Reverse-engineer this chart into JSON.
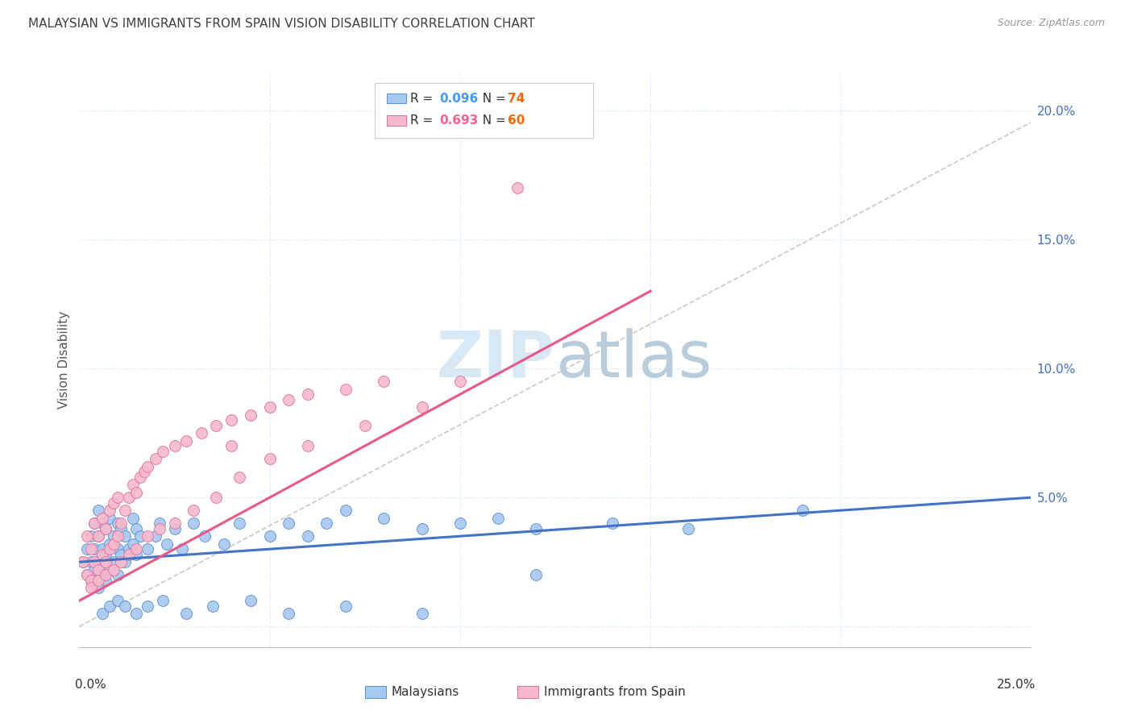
{
  "title": "MALAYSIAN VS IMMIGRANTS FROM SPAIN VISION DISABILITY CORRELATION CHART",
  "source": "Source: ZipAtlas.com",
  "ylabel": "Vision Disability",
  "xmin": 0.0,
  "xmax": 0.25,
  "ymin": -0.008,
  "ymax": 0.215,
  "blue_R": 0.096,
  "blue_N": 74,
  "pink_R": 0.693,
  "pink_N": 60,
  "blue_color": "#A8C8F0",
  "pink_color": "#F8B8CC",
  "blue_edge_color": "#5590D8",
  "pink_edge_color": "#E87098",
  "blue_line_color": "#4472C4",
  "pink_line_color": "#E85888",
  "ref_line_color": "#C8C8C8",
  "grid_color": "#DDEEFF",
  "title_color": "#404040",
  "source_color": "#999999",
  "legend_R_color_blue": "#4499FF",
  "legend_R_color_pink": "#FF6090",
  "legend_N_color": "#FF6600",
  "watermark_color": "#D0E8F8",
  "blue_scatter_x": [
    0.001,
    0.002,
    0.002,
    0.003,
    0.003,
    0.003,
    0.004,
    0.004,
    0.004,
    0.005,
    0.005,
    0.005,
    0.005,
    0.006,
    0.006,
    0.006,
    0.007,
    0.007,
    0.007,
    0.008,
    0.008,
    0.008,
    0.009,
    0.009,
    0.01,
    0.01,
    0.01,
    0.011,
    0.011,
    0.012,
    0.012,
    0.013,
    0.014,
    0.014,
    0.015,
    0.015,
    0.016,
    0.018,
    0.02,
    0.021,
    0.023,
    0.025,
    0.027,
    0.03,
    0.033,
    0.038,
    0.042,
    0.05,
    0.055,
    0.06,
    0.065,
    0.07,
    0.08,
    0.09,
    0.1,
    0.11,
    0.12,
    0.14,
    0.16,
    0.19,
    0.006,
    0.008,
    0.01,
    0.012,
    0.015,
    0.018,
    0.022,
    0.028,
    0.035,
    0.045,
    0.055,
    0.07,
    0.09,
    0.12
  ],
  "blue_scatter_y": [
    0.025,
    0.02,
    0.03,
    0.018,
    0.025,
    0.035,
    0.022,
    0.03,
    0.04,
    0.015,
    0.025,
    0.035,
    0.045,
    0.02,
    0.03,
    0.04,
    0.018,
    0.028,
    0.038,
    0.022,
    0.032,
    0.042,
    0.025,
    0.035,
    0.02,
    0.03,
    0.04,
    0.028,
    0.038,
    0.025,
    0.035,
    0.03,
    0.032,
    0.042,
    0.028,
    0.038,
    0.035,
    0.03,
    0.035,
    0.04,
    0.032,
    0.038,
    0.03,
    0.04,
    0.035,
    0.032,
    0.04,
    0.035,
    0.04,
    0.035,
    0.04,
    0.045,
    0.042,
    0.038,
    0.04,
    0.042,
    0.038,
    0.04,
    0.038,
    0.045,
    0.005,
    0.008,
    0.01,
    0.008,
    0.005,
    0.008,
    0.01,
    0.005,
    0.008,
    0.01,
    0.005,
    0.008,
    0.005,
    0.02
  ],
  "pink_scatter_x": [
    0.001,
    0.002,
    0.002,
    0.003,
    0.003,
    0.004,
    0.004,
    0.005,
    0.005,
    0.006,
    0.006,
    0.007,
    0.007,
    0.008,
    0.008,
    0.009,
    0.009,
    0.01,
    0.01,
    0.011,
    0.012,
    0.013,
    0.014,
    0.015,
    0.016,
    0.017,
    0.018,
    0.02,
    0.022,
    0.025,
    0.028,
    0.032,
    0.036,
    0.04,
    0.045,
    0.05,
    0.055,
    0.06,
    0.07,
    0.08,
    0.003,
    0.005,
    0.007,
    0.009,
    0.011,
    0.013,
    0.015,
    0.018,
    0.021,
    0.025,
    0.03,
    0.036,
    0.042,
    0.05,
    0.06,
    0.075,
    0.09,
    0.04,
    0.1,
    0.115
  ],
  "pink_scatter_y": [
    0.025,
    0.02,
    0.035,
    0.018,
    0.03,
    0.025,
    0.04,
    0.022,
    0.035,
    0.028,
    0.042,
    0.025,
    0.038,
    0.03,
    0.045,
    0.032,
    0.048,
    0.035,
    0.05,
    0.04,
    0.045,
    0.05,
    0.055,
    0.052,
    0.058,
    0.06,
    0.062,
    0.065,
    0.068,
    0.07,
    0.072,
    0.075,
    0.078,
    0.08,
    0.082,
    0.085,
    0.088,
    0.09,
    0.092,
    0.095,
    0.015,
    0.018,
    0.02,
    0.022,
    0.025,
    0.028,
    0.03,
    0.035,
    0.038,
    0.04,
    0.045,
    0.05,
    0.058,
    0.065,
    0.07,
    0.078,
    0.085,
    0.07,
    0.095,
    0.17
  ],
  "blue_trend_x0": 0.0,
  "blue_trend_y0": 0.025,
  "blue_trend_x1": 0.25,
  "blue_trend_y1": 0.05,
  "pink_trend_x0": 0.0,
  "pink_trend_y0": 0.01,
  "pink_trend_x1": 0.15,
  "pink_trend_y1": 0.13
}
